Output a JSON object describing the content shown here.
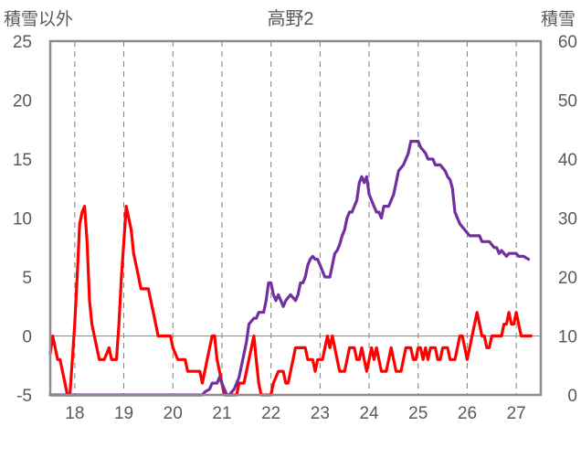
{
  "chart_data": {
    "type": "line",
    "title": "高野2",
    "left_axis_title": "積雪以外",
    "right_axis_title": "積雪",
    "x_ticks": [
      18,
      19,
      20,
      21,
      22,
      23,
      24,
      25,
      26,
      27
    ],
    "xlim": [
      17.5,
      27.5
    ],
    "y_left_ticks": [
      -5,
      0,
      5,
      10,
      15,
      20,
      25
    ],
    "ylim_left": [
      -5,
      25
    ],
    "y_right_ticks": [
      0,
      10,
      20,
      30,
      40,
      50,
      60
    ],
    "ylim_right": [
      0,
      60
    ],
    "grid": {
      "vertical_dashed": true,
      "horizontal": false,
      "zero_line_left": true
    },
    "series": [
      {
        "axis": "left",
        "color": "#ff0000",
        "points": [
          [
            17.5,
            -1.5
          ],
          [
            17.55,
            0
          ],
          [
            17.6,
            -1
          ],
          [
            17.65,
            -2
          ],
          [
            17.7,
            -2
          ],
          [
            17.75,
            -3
          ],
          [
            17.8,
            -4
          ],
          [
            17.85,
            -5
          ],
          [
            17.9,
            -5
          ],
          [
            17.95,
            -2
          ],
          [
            18.0,
            1
          ],
          [
            18.05,
            5
          ],
          [
            18.1,
            9.5
          ],
          [
            18.15,
            10.5
          ],
          [
            18.2,
            11
          ],
          [
            18.25,
            8
          ],
          [
            18.3,
            3
          ],
          [
            18.35,
            1
          ],
          [
            18.4,
            0
          ],
          [
            18.45,
            -1
          ],
          [
            18.5,
            -2
          ],
          [
            18.6,
            -2
          ],
          [
            18.7,
            -1
          ],
          [
            18.75,
            -2
          ],
          [
            18.85,
            -2
          ],
          [
            18.9,
            1
          ],
          [
            18.95,
            5
          ],
          [
            19.0,
            8
          ],
          [
            19.05,
            11
          ],
          [
            19.1,
            10
          ],
          [
            19.15,
            9
          ],
          [
            19.2,
            7
          ],
          [
            19.25,
            6
          ],
          [
            19.3,
            5
          ],
          [
            19.35,
            4
          ],
          [
            19.5,
            4
          ],
          [
            19.55,
            3
          ],
          [
            19.6,
            2
          ],
          [
            19.65,
            1
          ],
          [
            19.7,
            0
          ],
          [
            19.95,
            0
          ],
          [
            20.0,
            -1
          ],
          [
            20.1,
            -2
          ],
          [
            20.25,
            -2
          ],
          [
            20.3,
            -3
          ],
          [
            20.55,
            -3
          ],
          [
            20.6,
            -4
          ],
          [
            20.65,
            -3
          ],
          [
            20.7,
            -2
          ],
          [
            20.75,
            -1
          ],
          [
            20.8,
            0
          ],
          [
            20.85,
            0
          ],
          [
            20.9,
            -2
          ],
          [
            20.95,
            -3
          ],
          [
            21.0,
            -4
          ],
          [
            21.05,
            -5
          ],
          [
            21.3,
            -5
          ],
          [
            21.35,
            -4
          ],
          [
            21.45,
            -4
          ],
          [
            21.5,
            -3
          ],
          [
            21.55,
            -2
          ],
          [
            21.6,
            -1
          ],
          [
            21.65,
            0
          ],
          [
            21.7,
            -2
          ],
          [
            21.75,
            -4
          ],
          [
            21.8,
            -5
          ],
          [
            22.0,
            -5
          ],
          [
            22.05,
            -4
          ],
          [
            22.15,
            -3
          ],
          [
            22.25,
            -3
          ],
          [
            22.3,
            -4
          ],
          [
            22.35,
            -4
          ],
          [
            22.4,
            -3
          ],
          [
            22.45,
            -2
          ],
          [
            22.5,
            -1
          ],
          [
            22.7,
            -1
          ],
          [
            22.75,
            -2
          ],
          [
            22.85,
            -2
          ],
          [
            22.9,
            -3
          ],
          [
            22.95,
            -2
          ],
          [
            23.05,
            -2
          ],
          [
            23.1,
            -1
          ],
          [
            23.15,
            0
          ],
          [
            23.2,
            -1
          ],
          [
            23.25,
            0
          ],
          [
            23.3,
            -1
          ],
          [
            23.35,
            -2
          ],
          [
            23.4,
            -3
          ],
          [
            23.5,
            -3
          ],
          [
            23.55,
            -2
          ],
          [
            23.6,
            -1
          ],
          [
            23.7,
            -1
          ],
          [
            23.75,
            -2
          ],
          [
            23.8,
            -2
          ],
          [
            23.85,
            -1
          ],
          [
            23.9,
            -2
          ],
          [
            23.95,
            -3
          ],
          [
            24.0,
            -2
          ],
          [
            24.05,
            -1
          ],
          [
            24.1,
            -2
          ],
          [
            24.15,
            -1
          ],
          [
            24.2,
            -2
          ],
          [
            24.25,
            -3
          ],
          [
            24.35,
            -3
          ],
          [
            24.4,
            -2
          ],
          [
            24.45,
            -1
          ],
          [
            24.5,
            -2
          ],
          [
            24.55,
            -3
          ],
          [
            24.65,
            -3
          ],
          [
            24.7,
            -2
          ],
          [
            24.75,
            -1
          ],
          [
            24.85,
            -1
          ],
          [
            24.9,
            -2
          ],
          [
            24.95,
            -2
          ],
          [
            25.0,
            -1
          ],
          [
            25.05,
            -1
          ],
          [
            25.1,
            -2
          ],
          [
            25.15,
            -1
          ],
          [
            25.2,
            -2
          ],
          [
            25.25,
            -1
          ],
          [
            25.35,
            -1
          ],
          [
            25.4,
            -2
          ],
          [
            25.45,
            -2
          ],
          [
            25.5,
            -1
          ],
          [
            25.6,
            -1
          ],
          [
            25.65,
            -2
          ],
          [
            25.75,
            -2
          ],
          [
            25.8,
            -1
          ],
          [
            25.85,
            0
          ],
          [
            25.9,
            0
          ],
          [
            25.95,
            -1
          ],
          [
            26.0,
            -2
          ],
          [
            26.05,
            -1
          ],
          [
            26.1,
            0
          ],
          [
            26.15,
            1
          ],
          [
            26.2,
            2
          ],
          [
            26.25,
            1
          ],
          [
            26.3,
            0
          ],
          [
            26.35,
            0
          ],
          [
            26.4,
            -1
          ],
          [
            26.45,
            -1
          ],
          [
            26.5,
            0
          ],
          [
            26.7,
            0
          ],
          [
            26.75,
            1
          ],
          [
            26.8,
            1
          ],
          [
            26.85,
            2
          ],
          [
            26.9,
            1
          ],
          [
            26.95,
            1
          ],
          [
            27.0,
            2
          ],
          [
            27.05,
            1
          ],
          [
            27.1,
            0
          ],
          [
            27.2,
            0
          ],
          [
            27.3,
            0
          ]
        ]
      },
      {
        "axis": "right",
        "color": "#7030a0",
        "points": [
          [
            17.5,
            0
          ],
          [
            20.6,
            0
          ],
          [
            20.65,
            0.5
          ],
          [
            20.75,
            1
          ],
          [
            20.8,
            2
          ],
          [
            20.9,
            2
          ],
          [
            20.95,
            3
          ],
          [
            21.0,
            2
          ],
          [
            21.05,
            1
          ],
          [
            21.1,
            0
          ],
          [
            21.15,
            0
          ],
          [
            21.25,
            1
          ],
          [
            21.3,
            2
          ],
          [
            21.35,
            3
          ],
          [
            21.4,
            5
          ],
          [
            21.45,
            7
          ],
          [
            21.5,
            9
          ],
          [
            21.55,
            12
          ],
          [
            21.6,
            12.5
          ],
          [
            21.65,
            13
          ],
          [
            21.7,
            13
          ],
          [
            21.75,
            14
          ],
          [
            21.8,
            14
          ],
          [
            21.85,
            14
          ],
          [
            21.9,
            16
          ],
          [
            21.95,
            19
          ],
          [
            22.0,
            19
          ],
          [
            22.05,
            17
          ],
          [
            22.1,
            16
          ],
          [
            22.15,
            17
          ],
          [
            22.2,
            16
          ],
          [
            22.25,
            15
          ],
          [
            22.3,
            16
          ],
          [
            22.35,
            16.5
          ],
          [
            22.4,
            17
          ],
          [
            22.45,
            16.5
          ],
          [
            22.5,
            16
          ],
          [
            22.55,
            17
          ],
          [
            22.6,
            19
          ],
          [
            22.65,
            19
          ],
          [
            22.7,
            20
          ],
          [
            22.75,
            22
          ],
          [
            22.8,
            23
          ],
          [
            22.85,
            23.5
          ],
          [
            22.9,
            23
          ],
          [
            22.95,
            23
          ],
          [
            23.0,
            22
          ],
          [
            23.05,
            21
          ],
          [
            23.1,
            20
          ],
          [
            23.2,
            20
          ],
          [
            23.25,
            22
          ],
          [
            23.3,
            24
          ],
          [
            23.35,
            24.5
          ],
          [
            23.4,
            25.5
          ],
          [
            23.45,
            27
          ],
          [
            23.5,
            28
          ],
          [
            23.55,
            30
          ],
          [
            23.6,
            31
          ],
          [
            23.65,
            31
          ],
          [
            23.7,
            32
          ],
          [
            23.75,
            33
          ],
          [
            23.8,
            36
          ],
          [
            23.85,
            37
          ],
          [
            23.9,
            36
          ],
          [
            23.95,
            37
          ],
          [
            24.0,
            34
          ],
          [
            24.05,
            33
          ],
          [
            24.1,
            32
          ],
          [
            24.15,
            31
          ],
          [
            24.2,
            31
          ],
          [
            24.25,
            30
          ],
          [
            24.3,
            32
          ],
          [
            24.4,
            32
          ],
          [
            24.45,
            33
          ],
          [
            24.5,
            34
          ],
          [
            24.55,
            36
          ],
          [
            24.6,
            38
          ],
          [
            24.7,
            39
          ],
          [
            24.75,
            40
          ],
          [
            24.8,
            41
          ],
          [
            24.85,
            43
          ],
          [
            25.0,
            43
          ],
          [
            25.05,
            42
          ],
          [
            25.1,
            41.5
          ],
          [
            25.15,
            41
          ],
          [
            25.2,
            40
          ],
          [
            25.3,
            40
          ],
          [
            25.35,
            39
          ],
          [
            25.45,
            39
          ],
          [
            25.5,
            38.5
          ],
          [
            25.55,
            38
          ],
          [
            25.6,
            37
          ],
          [
            25.65,
            36.5
          ],
          [
            25.7,
            35
          ],
          [
            25.75,
            31
          ],
          [
            25.8,
            30
          ],
          [
            25.85,
            29
          ],
          [
            25.9,
            28.5
          ],
          [
            25.95,
            28
          ],
          [
            26.0,
            27.5
          ],
          [
            26.05,
            27
          ],
          [
            26.25,
            27
          ],
          [
            26.3,
            26
          ],
          [
            26.45,
            26
          ],
          [
            26.5,
            25.5
          ],
          [
            26.55,
            25
          ],
          [
            26.6,
            25
          ],
          [
            26.65,
            24
          ],
          [
            26.7,
            24.5
          ],
          [
            26.75,
            24
          ],
          [
            26.8,
            23.5
          ],
          [
            26.85,
            24
          ],
          [
            27.0,
            24
          ],
          [
            27.05,
            23.5
          ],
          [
            27.15,
            23.5
          ],
          [
            27.25,
            23
          ]
        ]
      }
    ]
  }
}
